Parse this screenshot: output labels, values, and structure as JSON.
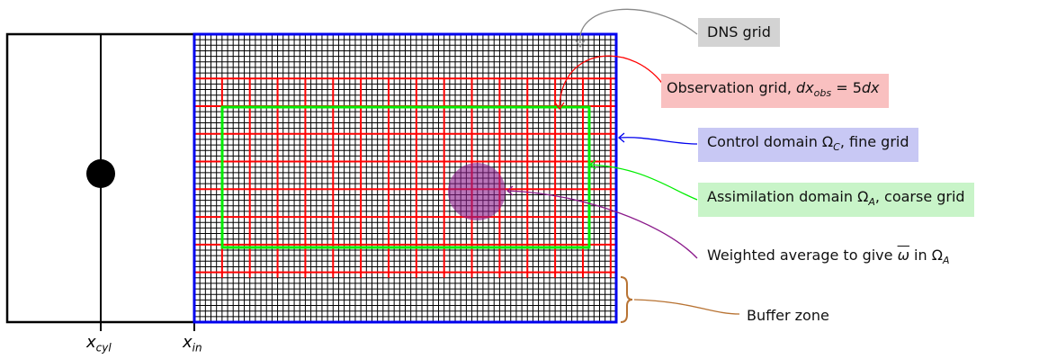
{
  "labels": {
    "dns_grid": "DNS grid",
    "observation_prefix": "Observation grid, ",
    "observation_math": "dx",
    "observation_math_sub": "obs",
    "observation_eq": " = 5",
    "observation_tail": "dx",
    "control_prefix": "Control domain Ω",
    "control_sub": "C",
    "control_suffix": ", fine grid",
    "assim_prefix": "Assimilation domain Ω",
    "assim_sub": "A",
    "assim_suffix": ", coarse grid",
    "weighted_prefix": "Weighted average to give ",
    "weighted_omega": "ω",
    "weighted_mid": " in Ω",
    "weighted_sub": "A",
    "buffer": "Buffer zone"
  },
  "axis": {
    "x_cyl_base": "x",
    "x_cyl_sub": "cyl",
    "x_in_base": "x",
    "x_in_sub": "in"
  },
  "colors": {
    "dns": "#000000",
    "observation": "#ff0000",
    "control": "#0000ee",
    "assimilation": "#00ee00",
    "weighted": "#8b1a8b",
    "buffer": "#b87333",
    "dns_box": "#d3d3d3",
    "observation_box": "#f9c0c0",
    "control_box": "#c8c8f4",
    "assim_box": "#c8f4c8"
  }
}
